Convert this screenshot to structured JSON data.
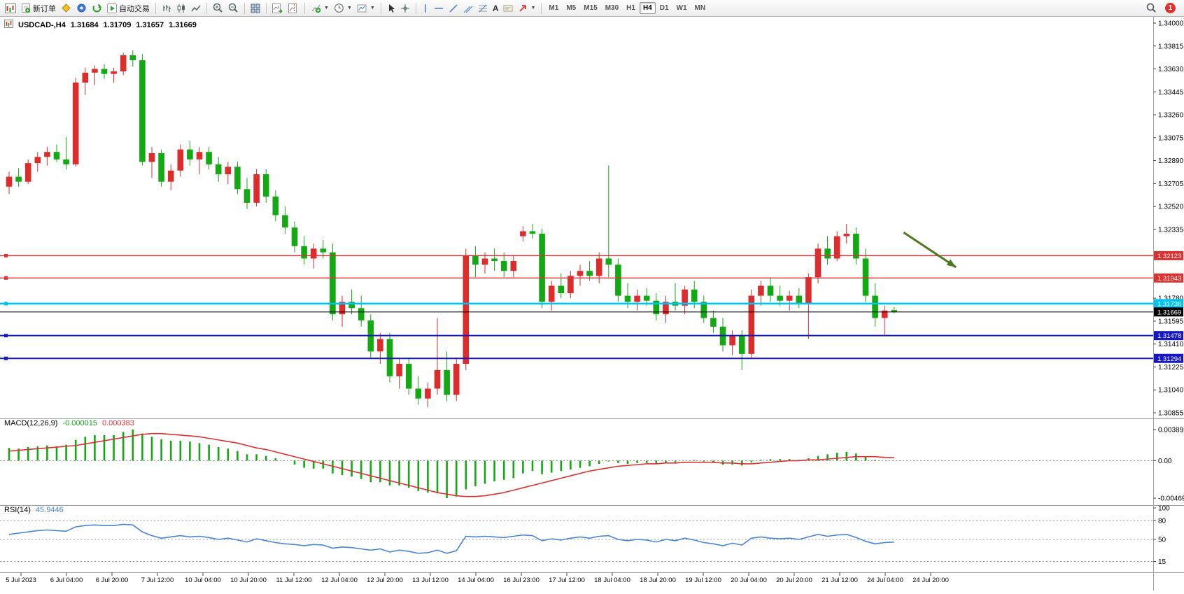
{
  "toolbar": {
    "new_order": "新订单",
    "auto_trading": "自动交易",
    "text_tool": "A",
    "timeframes": [
      "M1",
      "M5",
      "M15",
      "M30",
      "H1",
      "H4",
      "D1",
      "W1",
      "MN"
    ],
    "active_timeframe": "H4",
    "notification_badge": "1"
  },
  "chart_header": {
    "symbol": "USDCAD-,H4",
    "open": "1.31684",
    "high": "1.31709",
    "low": "1.31657",
    "close": "1.31669"
  },
  "chart_data": {
    "type": "candlestick",
    "symbol": "USDCAD",
    "timeframe": "H4",
    "up_color": "#dd2c2c",
    "down_color": "#13a913",
    "price_axis_labels": [
      "1.34000",
      "1.33815",
      "1.33630",
      "1.33445",
      "1.33260",
      "1.33075",
      "1.32890",
      "1.32705",
      "1.32520",
      "1.32335",
      "1.31780",
      "1.31595",
      "1.31410",
      "1.31225",
      "1.31040",
      "1.30855"
    ],
    "time_labels": [
      "5 Jul 2023",
      "6 Jul 04:00",
      "6 Jul 20:00",
      "7 Jul 12:00",
      "10 Jul 04:00",
      "10 Jul 20:00",
      "11 Jul 12:00",
      "12 Jul 04:00",
      "12 Jul 20:00",
      "13 Jul 12:00",
      "14 Jul 04:00",
      "16 Jul 23:00",
      "17 Jul 12:00",
      "18 Jul 04:00",
      "18 Jul 20:00",
      "19 Jul 12:00",
      "20 Jul 04:00",
      "20 Jul 20:00",
      "21 Jul 12:00",
      "24 Jul 04:00",
      "24 Jul 20:00"
    ],
    "levels": [
      {
        "value": "1.32123",
        "color": "#e03131",
        "width": 1.4
      },
      {
        "value": "1.31943",
        "color": "#e03131",
        "width": 1.4
      },
      {
        "value": "1.31736",
        "color": "#00c3ef",
        "width": 2.6
      },
      {
        "value": "1.31669",
        "color": "#000000",
        "width": 1,
        "current": true
      },
      {
        "value": "1.31478",
        "color": "#1616c8",
        "width": 2
      },
      {
        "value": "1.31294",
        "color": "#1616c8",
        "width": 2
      }
    ],
    "annotation_arrow": {
      "from_bar": 94,
      "from_price": 1.3231,
      "to_bar": 99.5,
      "to_price": 1.3203,
      "color": "#4a7a21"
    },
    "candles": [
      [
        1.3268,
        1.328,
        1.3262,
        1.3276
      ],
      [
        1.3276,
        1.3283,
        1.3268,
        1.3272
      ],
      [
        1.3272,
        1.329,
        1.327,
        1.3287
      ],
      [
        1.3287,
        1.3296,
        1.328,
        1.3292
      ],
      [
        1.3292,
        1.33,
        1.3285,
        1.3296
      ],
      [
        1.3296,
        1.3302,
        1.3288,
        1.329
      ],
      [
        1.329,
        1.3308,
        1.3282,
        1.3286
      ],
      [
        1.3286,
        1.3356,
        1.3284,
        1.3352
      ],
      [
        1.3352,
        1.3364,
        1.3342,
        1.336
      ],
      [
        1.336,
        1.3366,
        1.335,
        1.3363
      ],
      [
        1.3363,
        1.3367,
        1.3355,
        1.3359
      ],
      [
        1.3359,
        1.3364,
        1.3352,
        1.3361
      ],
      [
        1.3361,
        1.3376,
        1.3358,
        1.3374
      ],
      [
        1.3374,
        1.3378,
        1.3365,
        1.337
      ],
      [
        1.337,
        1.3375,
        1.3285,
        1.3288
      ],
      [
        1.3288,
        1.33,
        1.3275,
        1.3295
      ],
      [
        1.3295,
        1.3298,
        1.3268,
        1.3272
      ],
      [
        1.3272,
        1.3286,
        1.3265,
        1.3281
      ],
      [
        1.3281,
        1.3302,
        1.3276,
        1.3298
      ],
      [
        1.3298,
        1.3305,
        1.3285,
        1.329
      ],
      [
        1.329,
        1.33,
        1.3278,
        1.3296
      ],
      [
        1.3296,
        1.33,
        1.3282,
        1.3286
      ],
      [
        1.3286,
        1.3292,
        1.3272,
        1.3278
      ],
      [
        1.3278,
        1.3288,
        1.327,
        1.3284
      ],
      [
        1.3284,
        1.3288,
        1.3262,
        1.3266
      ],
      [
        1.3266,
        1.3275,
        1.325,
        1.3255
      ],
      [
        1.3255,
        1.3282,
        1.3252,
        1.3278
      ],
      [
        1.3278,
        1.3282,
        1.3255,
        1.326
      ],
      [
        1.326,
        1.3265,
        1.324,
        1.3245
      ],
      [
        1.3245,
        1.3252,
        1.323,
        1.3235
      ],
      [
        1.3235,
        1.324,
        1.3215,
        1.322
      ],
      [
        1.322,
        1.3228,
        1.3205,
        1.321
      ],
      [
        1.321,
        1.3222,
        1.3202,
        1.3218
      ],
      [
        1.3218,
        1.3225,
        1.321,
        1.3215
      ],
      [
        1.3215,
        1.3222,
        1.316,
        1.3165
      ],
      [
        1.3165,
        1.318,
        1.3155,
        1.3175
      ],
      [
        1.3175,
        1.3185,
        1.3165,
        1.317
      ],
      [
        1.317,
        1.318,
        1.3155,
        1.316
      ],
      [
        1.316,
        1.3165,
        1.313,
        1.3135
      ],
      [
        1.3135,
        1.315,
        1.3125,
        1.3145
      ],
      [
        1.3145,
        1.315,
        1.311,
        1.3115
      ],
      [
        1.3115,
        1.313,
        1.3105,
        1.3125
      ],
      [
        1.3125,
        1.313,
        1.31,
        1.3105
      ],
      [
        1.3105,
        1.3115,
        1.3092,
        1.3097
      ],
      [
        1.3097,
        1.311,
        1.309,
        1.3105
      ],
      [
        1.3105,
        1.3162,
        1.31,
        1.312
      ],
      [
        1.312,
        1.3135,
        1.3095,
        1.31
      ],
      [
        1.31,
        1.313,
        1.3095,
        1.3125
      ],
      [
        1.3125,
        1.3218,
        1.312,
        1.3212
      ],
      [
        1.3212,
        1.322,
        1.3195,
        1.3205
      ],
      [
        1.3205,
        1.3215,
        1.3198,
        1.321
      ],
      [
        1.321,
        1.3218,
        1.32,
        1.3208
      ],
      [
        1.3208,
        1.3215,
        1.3195,
        1.32
      ],
      [
        1.32,
        1.3212,
        1.3195,
        1.3208
      ],
      [
        1.3228,
        1.3236,
        1.3224,
        1.3232
      ],
      [
        1.3232,
        1.3238,
        1.3226,
        1.323
      ],
      [
        1.323,
        1.3234,
        1.317,
        1.3175
      ],
      [
        1.3175,
        1.3192,
        1.3168,
        1.3188
      ],
      [
        1.3188,
        1.3198,
        1.3178,
        1.3182
      ],
      [
        1.3182,
        1.32,
        1.3178,
        1.3196
      ],
      [
        1.3196,
        1.3205,
        1.3188,
        1.32
      ],
      [
        1.32,
        1.3208,
        1.3192,
        1.3196
      ],
      [
        1.3196,
        1.3215,
        1.319,
        1.321
      ],
      [
        1.321,
        1.3285,
        1.3195,
        1.3205
      ],
      [
        1.3205,
        1.321,
        1.3175,
        1.318
      ],
      [
        1.318,
        1.319,
        1.317,
        1.3175
      ],
      [
        1.3175,
        1.3185,
        1.3168,
        1.318
      ],
      [
        1.318,
        1.3186,
        1.3172,
        1.3176
      ],
      [
        1.3176,
        1.3182,
        1.316,
        1.3165
      ],
      [
        1.3165,
        1.318,
        1.3158,
        1.3175
      ],
      [
        1.3175,
        1.319,
        1.3168,
        1.3172
      ],
      [
        1.3172,
        1.3188,
        1.3165,
        1.3185
      ],
      [
        1.3185,
        1.3192,
        1.317,
        1.3175
      ],
      [
        1.3175,
        1.318,
        1.3158,
        1.3162
      ],
      [
        1.3162,
        1.3168,
        1.315,
        1.3155
      ],
      [
        1.3155,
        1.3162,
        1.3135,
        1.314
      ],
      [
        1.314,
        1.3152,
        1.3132,
        1.3148
      ],
      [
        1.3148,
        1.3152,
        1.312,
        1.3133
      ],
      [
        1.3133,
        1.3185,
        1.313,
        1.318
      ],
      [
        1.318,
        1.3192,
        1.3172,
        1.3188
      ],
      [
        1.3188,
        1.3195,
        1.3175,
        1.318
      ],
      [
        1.318,
        1.3188,
        1.3172,
        1.3176
      ],
      [
        1.3176,
        1.3184,
        1.3168,
        1.318
      ],
      [
        1.318,
        1.3186,
        1.317,
        1.3174
      ],
      [
        1.3174,
        1.3198,
        1.3145,
        1.3195
      ],
      [
        1.3195,
        1.3222,
        1.319,
        1.3218
      ],
      [
        1.3218,
        1.3228,
        1.3205,
        1.321
      ],
      [
        1.321,
        1.3232,
        1.3208,
        1.3228
      ],
      [
        1.3228,
        1.3238,
        1.3222,
        1.323
      ],
      [
        1.323,
        1.3235,
        1.3205,
        1.321
      ],
      [
        1.321,
        1.3218,
        1.3175,
        1.318
      ],
      [
        1.318,
        1.319,
        1.3155,
        1.3162
      ],
      [
        1.3162,
        1.3172,
        1.3148,
        1.3168
      ],
      [
        1.31684,
        1.31709,
        1.31657,
        1.31669
      ]
    ],
    "macd": {
      "label": "MACD(12,26,9)",
      "value_main": "-0.000015",
      "value_signal": "0.000383",
      "axis_labels": [
        "0.003895",
        "0.00",
        "-0.004699"
      ],
      "histogram_color": "#13a913",
      "signal_color": "#e03131",
      "histogram": [
        0.0016,
        0.0015,
        0.0017,
        0.0018,
        0.0019,
        0.0018,
        0.002,
        0.0026,
        0.003,
        0.0032,
        0.0032,
        0.0032,
        0.0036,
        0.0039,
        0.0034,
        0.003,
        0.0027,
        0.0025,
        0.0025,
        0.0024,
        0.0022,
        0.002,
        0.0017,
        0.0015,
        0.0012,
        0.0008,
        0.0008,
        0.0006,
        0.0003,
        0.0,
        -0.0005,
        -0.0009,
        -0.001,
        -0.001,
        -0.0016,
        -0.0018,
        -0.002,
        -0.0023,
        -0.0027,
        -0.0027,
        -0.0031,
        -0.0031,
        -0.0034,
        -0.0038,
        -0.004,
        -0.0041,
        -0.0047,
        -0.0045,
        -0.0036,
        -0.0032,
        -0.0029,
        -0.0026,
        -0.0024,
        -0.0022,
        -0.0016,
        -0.0013,
        -0.0017,
        -0.0015,
        -0.0013,
        -0.0011,
        -0.0009,
        -0.0007,
        -0.0004,
        -0.0001,
        -0.0003,
        -0.0004,
        -0.0003,
        -0.0003,
        -0.0004,
        -0.0003,
        -0.0002,
        0.0,
        0.0001,
        -0.0001,
        -0.0003,
        -0.0005,
        -0.0005,
        -0.0006,
        -0.0002,
        0.0001,
        0.0002,
        0.0002,
        0.0002,
        0.0001,
        0.0003,
        0.0006,
        0.0008,
        0.001,
        0.0011,
        0.0009,
        0.0005,
        0.0001,
        0.0,
        -1.5e-05
      ],
      "signal": [
        0.0012,
        0.0013,
        0.0014,
        0.0015,
        0.0016,
        0.0017,
        0.0018,
        0.0019,
        0.0021,
        0.0023,
        0.0025,
        0.0027,
        0.0029,
        0.0031,
        0.0033,
        0.0034,
        0.0034,
        0.0033,
        0.0032,
        0.0031,
        0.003,
        0.0028,
        0.0026,
        0.0024,
        0.0022,
        0.0019,
        0.0016,
        0.0014,
        0.0011,
        0.0008,
        0.0005,
        0.0002,
        -0.0001,
        -0.0004,
        -0.0007,
        -0.001,
        -0.0013,
        -0.0016,
        -0.0019,
        -0.0022,
        -0.0025,
        -0.0028,
        -0.0031,
        -0.0034,
        -0.0037,
        -0.004,
        -0.0042,
        -0.0044,
        -0.0045,
        -0.0045,
        -0.0044,
        -0.0042,
        -0.004,
        -0.0037,
        -0.0034,
        -0.0031,
        -0.0028,
        -0.0025,
        -0.0022,
        -0.0019,
        -0.0016,
        -0.0013,
        -0.0011,
        -0.0009,
        -0.0007,
        -0.0006,
        -0.0005,
        -0.0004,
        -0.0004,
        -0.0003,
        -0.0003,
        -0.0002,
        -0.0002,
        -0.0002,
        -0.0002,
        -0.0003,
        -0.0003,
        -0.0004,
        -0.0004,
        -0.0003,
        -0.0002,
        -0.0001,
        0.0,
        0.0,
        0.0001,
        0.0001,
        0.0002,
        0.0003,
        0.0004,
        0.0005,
        0.0005,
        0.0005,
        0.0004,
        0.000383
      ]
    },
    "rsi": {
      "label": "RSI(14)",
      "value": "45.9446",
      "line_color": "#4a86d8",
      "levels": [
        80,
        50,
        15
      ],
      "axis_labels": [
        "100",
        "80",
        "50",
        "15"
      ],
      "values": [
        58,
        60,
        62,
        64,
        65,
        64,
        63,
        70,
        72,
        73,
        72,
        72,
        74,
        73,
        62,
        56,
        52,
        54,
        56,
        54,
        55,
        53,
        50,
        52,
        49,
        46,
        51,
        48,
        45,
        43,
        42,
        40,
        42,
        41,
        36,
        38,
        37,
        35,
        33,
        35,
        30,
        33,
        31,
        28,
        29,
        33,
        28,
        32,
        55,
        54,
        55,
        54,
        53,
        55,
        57,
        56,
        48,
        51,
        49,
        52,
        54,
        52,
        55,
        56,
        50,
        48,
        50,
        49,
        46,
        50,
        48,
        52,
        49,
        45,
        43,
        40,
        44,
        41,
        52,
        54,
        52,
        51,
        52,
        50,
        54,
        58,
        55,
        57,
        58,
        53,
        47,
        43,
        45,
        45.9
      ]
    }
  }
}
